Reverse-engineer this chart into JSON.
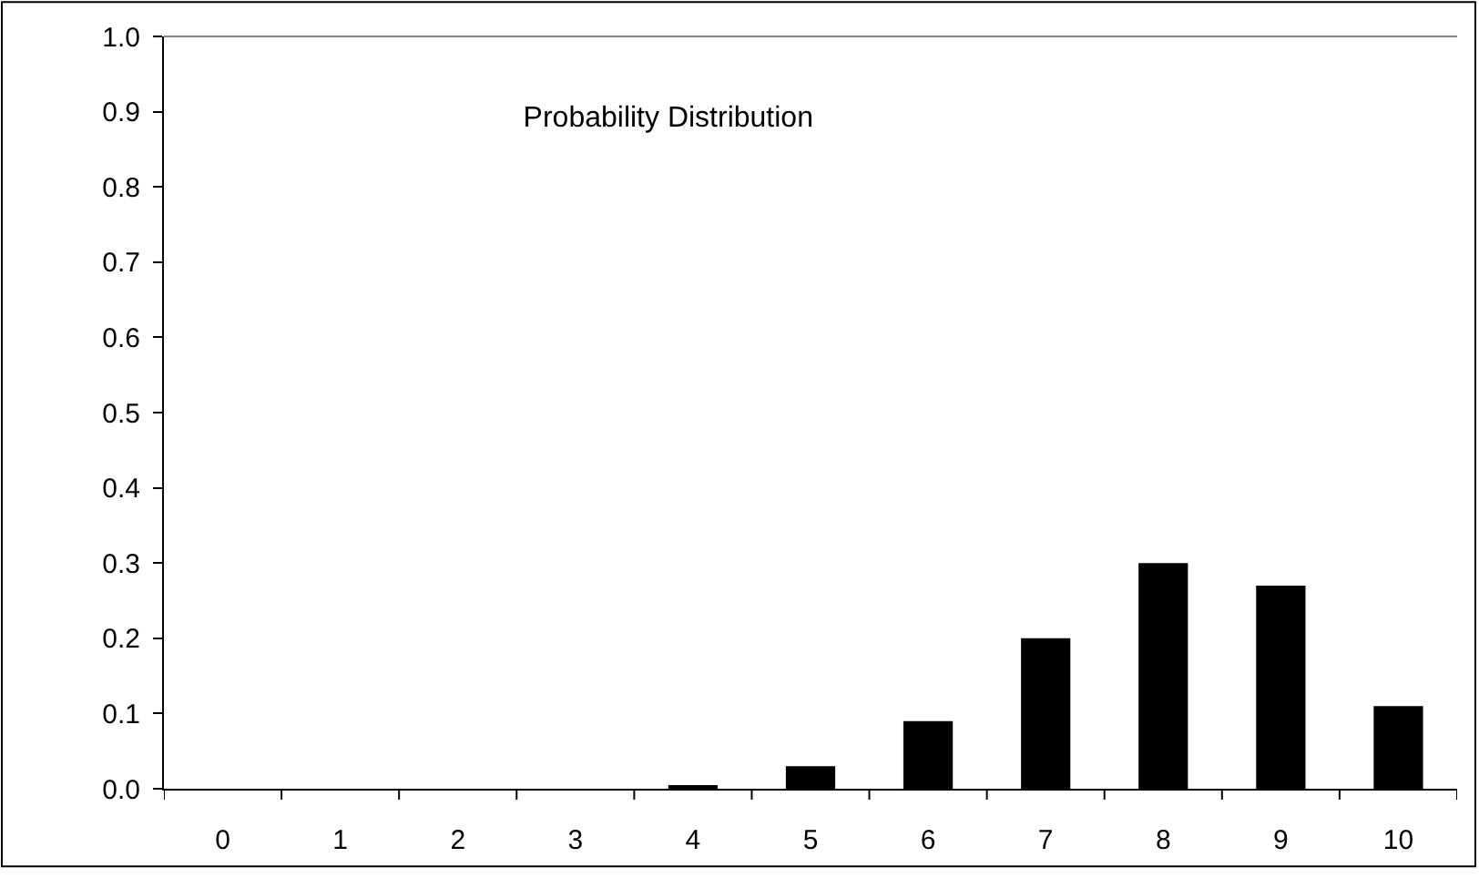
{
  "chart_data": {
    "type": "bar",
    "title": "Probability Distribution",
    "categories": [
      "0",
      "1",
      "2",
      "3",
      "4",
      "5",
      "6",
      "7",
      "8",
      "9",
      "10"
    ],
    "values": [
      0.0,
      0.0,
      0.0,
      0.0,
      0.005,
      0.03,
      0.09,
      0.2,
      0.3,
      0.27,
      0.11
    ],
    "color": "#000000",
    "ylim": [
      0,
      1
    ],
    "yticks": [
      {
        "value": 0,
        "label": "0.0"
      },
      {
        "value": 0.1,
        "label": "0.1"
      },
      {
        "value": 0.2,
        "label": "0.2"
      },
      {
        "value": 0.3,
        "label": "0.3"
      },
      {
        "value": 0.4,
        "label": "0.4"
      },
      {
        "value": 0.5,
        "label": "0.5"
      },
      {
        "value": 0.6,
        "label": "0.6"
      },
      {
        "value": 0.7,
        "label": "0.7"
      },
      {
        "value": 0.8,
        "label": "0.8"
      },
      {
        "value": 0.9,
        "label": "0.9"
      },
      {
        "value": 1,
        "label": "1.0"
      }
    ],
    "legend": false
  }
}
